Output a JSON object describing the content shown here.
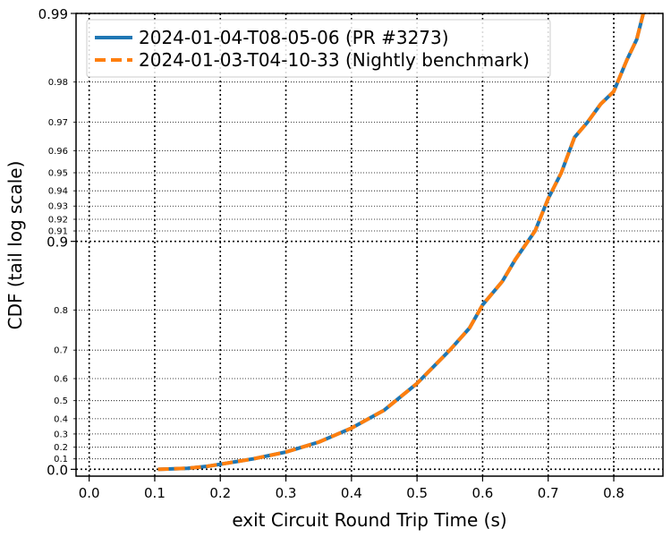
{
  "chart_data": {
    "type": "line",
    "xlabel": "exit Circuit Round Trip Time (s)",
    "ylabel": "CDF (tail log scale)",
    "xlim": [
      -0.02,
      0.875
    ],
    "x_ticks": [
      "0.0",
      "0.1",
      "0.2",
      "0.3",
      "0.4",
      "0.5",
      "0.6",
      "0.7",
      "0.8"
    ],
    "y_scale": "tail-log",
    "y_major_ticks": [
      "0.0",
      "0.9",
      "0.99"
    ],
    "y_minor_ticks": [
      "0.1",
      "0.2",
      "0.3",
      "0.4",
      "0.5",
      "0.6",
      "0.7",
      "0.8",
      "0.91",
      "0.92",
      "0.93",
      "0.94",
      "0.95",
      "0.96",
      "0.97",
      "0.98"
    ],
    "grid": true,
    "legend_position": "top-left",
    "series": [
      {
        "name": "2024-01-04-T08-05-06 (PR #3273)",
        "color": "#1f77b4",
        "style": "solid",
        "points": [
          [
            0.105,
            0.0
          ],
          [
            0.15,
            0.01
          ],
          [
            0.18,
            0.03
          ],
          [
            0.2,
            0.05
          ],
          [
            0.25,
            0.1
          ],
          [
            0.3,
            0.16
          ],
          [
            0.35,
            0.24
          ],
          [
            0.4,
            0.34
          ],
          [
            0.45,
            0.45
          ],
          [
            0.5,
            0.58
          ],
          [
            0.55,
            0.7
          ],
          [
            0.58,
            0.76
          ],
          [
            0.6,
            0.81
          ],
          [
            0.63,
            0.85
          ],
          [
            0.65,
            0.88
          ],
          [
            0.68,
            0.91
          ],
          [
            0.7,
            0.935
          ],
          [
            0.72,
            0.95
          ],
          [
            0.74,
            0.965
          ],
          [
            0.76,
            0.97
          ],
          [
            0.78,
            0.975
          ],
          [
            0.8,
            0.978
          ],
          [
            0.82,
            0.984
          ],
          [
            0.835,
            0.987
          ],
          [
            0.845,
            0.99
          ]
        ]
      },
      {
        "name": "2024-01-03-T04-10-33 (Nightly benchmark)",
        "color": "#ff7f0e",
        "style": "dashed",
        "points": [
          [
            0.105,
            0.0
          ],
          [
            0.15,
            0.01
          ],
          [
            0.18,
            0.03
          ],
          [
            0.2,
            0.05
          ],
          [
            0.25,
            0.1
          ],
          [
            0.3,
            0.16
          ],
          [
            0.35,
            0.24
          ],
          [
            0.4,
            0.34
          ],
          [
            0.45,
            0.45
          ],
          [
            0.5,
            0.58
          ],
          [
            0.55,
            0.7
          ],
          [
            0.58,
            0.76
          ],
          [
            0.6,
            0.81
          ],
          [
            0.63,
            0.85
          ],
          [
            0.65,
            0.88
          ],
          [
            0.68,
            0.91
          ],
          [
            0.7,
            0.935
          ],
          [
            0.72,
            0.95
          ],
          [
            0.74,
            0.965
          ],
          [
            0.76,
            0.97
          ],
          [
            0.78,
            0.975
          ],
          [
            0.8,
            0.978
          ],
          [
            0.82,
            0.984
          ],
          [
            0.835,
            0.987
          ],
          [
            0.845,
            0.99
          ]
        ]
      }
    ]
  }
}
